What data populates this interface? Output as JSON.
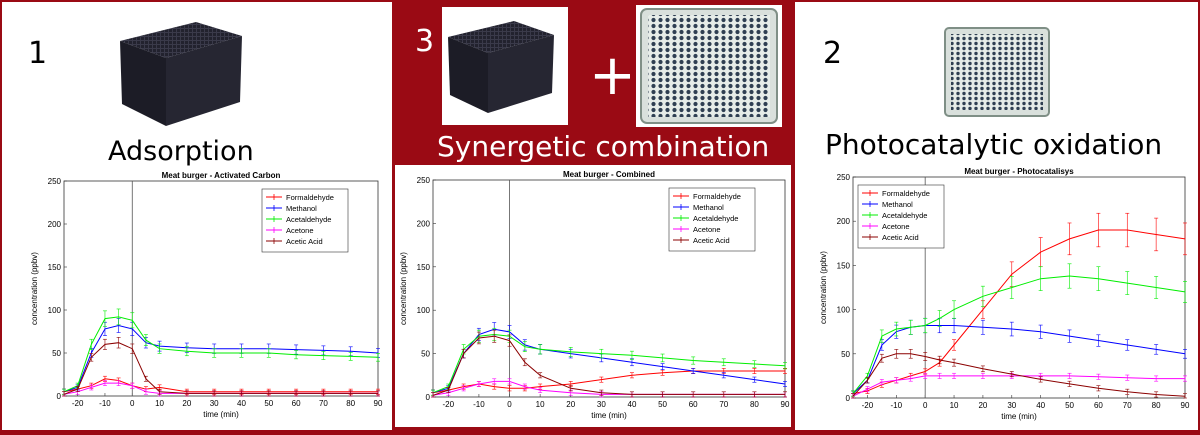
{
  "panels": [
    {
      "number": "1",
      "label": "Adsorption"
    },
    {
      "number": "3",
      "label": "Synergetic combination",
      "plus": "+"
    },
    {
      "number": "2",
      "label": "Photocatalytic oxidation"
    }
  ],
  "chart_data": [
    {
      "type": "line",
      "title": "Meat burger - Activated Carbon",
      "xlabel": "time (min)",
      "ylabel": "concentration (ppbv)",
      "xlim": [
        -25,
        90
      ],
      "ylim": [
        0,
        250
      ],
      "xticks": [
        -20,
        -10,
        0,
        10,
        20,
        30,
        40,
        50,
        60,
        70,
        80,
        90
      ],
      "yticks": [
        0,
        50,
        100,
        150,
        200,
        250
      ],
      "legend": "top-right",
      "x": [
        -25,
        -20,
        -15,
        -10,
        -5,
        0,
        5,
        10,
        20,
        30,
        40,
        50,
        60,
        70,
        80,
        90
      ],
      "series": [
        {
          "name": "Formaldehyde",
          "color": "#ff0000",
          "values": [
            5,
            8,
            12,
            20,
            18,
            12,
            8,
            10,
            5,
            5,
            5,
            5,
            5,
            5,
            5,
            5
          ]
        },
        {
          "name": "Methanol",
          "color": "#0000ff",
          "values": [
            5,
            10,
            50,
            78,
            82,
            78,
            62,
            58,
            56,
            55,
            55,
            55,
            54,
            53,
            52,
            50
          ]
        },
        {
          "name": "Acetaldehyde",
          "color": "#00ee00",
          "values": [
            5,
            12,
            60,
            90,
            92,
            88,
            65,
            55,
            52,
            50,
            50,
            50,
            48,
            47,
            46,
            45
          ]
        },
        {
          "name": "Acetone",
          "color": "#ff00ff",
          "values": [
            2,
            5,
            10,
            15,
            15,
            12,
            5,
            3,
            3,
            3,
            3,
            3,
            3,
            3,
            3,
            3
          ]
        },
        {
          "name": "Acetic Acid",
          "color": "#8b0000",
          "values": [
            2,
            8,
            45,
            60,
            62,
            55,
            20,
            5,
            3,
            3,
            3,
            3,
            3,
            3,
            3,
            3
          ]
        }
      ]
    },
    {
      "type": "line",
      "title": "Meat burger - Combined",
      "xlabel": "time (min)",
      "ylabel": "concentration (ppbv)",
      "xlim": [
        -25,
        90
      ],
      "ylim": [
        0,
        250
      ],
      "xticks": [
        -20,
        -10,
        0,
        10,
        20,
        30,
        40,
        50,
        60,
        70,
        80,
        90
      ],
      "yticks": [
        0,
        50,
        100,
        150,
        200,
        250
      ],
      "legend": "top-right",
      "x": [
        -25,
        -20,
        -15,
        -10,
        -5,
        0,
        5,
        10,
        20,
        30,
        40,
        50,
        60,
        70,
        80,
        90
      ],
      "series": [
        {
          "name": "Formaldehyde",
          "color": "#ff0000",
          "values": [
            5,
            8,
            12,
            15,
            12,
            10,
            10,
            12,
            15,
            20,
            25,
            28,
            30,
            30,
            30,
            30
          ]
        },
        {
          "name": "Methanol",
          "color": "#0000ff",
          "values": [
            5,
            10,
            50,
            72,
            78,
            75,
            60,
            55,
            50,
            45,
            40,
            35,
            30,
            25,
            20,
            15
          ]
        },
        {
          "name": "Acetaldehyde",
          "color": "#00ee00",
          "values": [
            5,
            12,
            55,
            70,
            72,
            70,
            58,
            55,
            52,
            50,
            48,
            45,
            42,
            40,
            38,
            36
          ]
        },
        {
          "name": "Acetone",
          "color": "#ff00ff",
          "values": [
            2,
            5,
            10,
            15,
            18,
            18,
            12,
            8,
            5,
            3,
            3,
            3,
            3,
            3,
            3,
            3
          ]
        },
        {
          "name": "Acetic Acid",
          "color": "#8b0000",
          "values": [
            2,
            8,
            50,
            68,
            70,
            65,
            40,
            25,
            10,
            5,
            3,
            3,
            3,
            3,
            3,
            3
          ]
        }
      ]
    },
    {
      "type": "line",
      "title": "Meat burger - Photocatalisys",
      "xlabel": "time (min)",
      "ylabel": "concentration (ppbv)",
      "xlim": [
        -25,
        90
      ],
      "ylim": [
        0,
        250
      ],
      "xticks": [
        -20,
        -10,
        0,
        10,
        20,
        30,
        40,
        50,
        60,
        70,
        80,
        90
      ],
      "yticks": [
        0,
        50,
        100,
        150,
        200,
        250
      ],
      "legend": "top-left",
      "x": [
        -25,
        -20,
        -15,
        -10,
        -5,
        0,
        5,
        10,
        20,
        30,
        40,
        50,
        60,
        70,
        80,
        90
      ],
      "series": [
        {
          "name": "Formaldehyde",
          "color": "#ff0000",
          "values": [
            5,
            8,
            15,
            20,
            25,
            30,
            40,
            60,
            100,
            140,
            165,
            180,
            190,
            190,
            185,
            180
          ]
        },
        {
          "name": "Methanol",
          "color": "#0000ff",
          "values": [
            5,
            20,
            60,
            75,
            80,
            82,
            82,
            82,
            80,
            78,
            75,
            70,
            65,
            60,
            55,
            50
          ]
        },
        {
          "name": "Acetaldehyde",
          "color": "#00ee00",
          "values": [
            5,
            25,
            70,
            78,
            80,
            82,
            90,
            100,
            115,
            125,
            135,
            138,
            135,
            130,
            125,
            120
          ]
        },
        {
          "name": "Acetone",
          "color": "#ff00ff",
          "values": [
            2,
            10,
            18,
            20,
            22,
            25,
            25,
            25,
            25,
            25,
            25,
            25,
            24,
            23,
            22,
            22
          ]
        },
        {
          "name": "Acetic Acid",
          "color": "#8b0000",
          "values": [
            2,
            20,
            45,
            50,
            50,
            47,
            43,
            40,
            33,
            27,
            21,
            16,
            11,
            7,
            4,
            2
          ]
        }
      ]
    }
  ]
}
